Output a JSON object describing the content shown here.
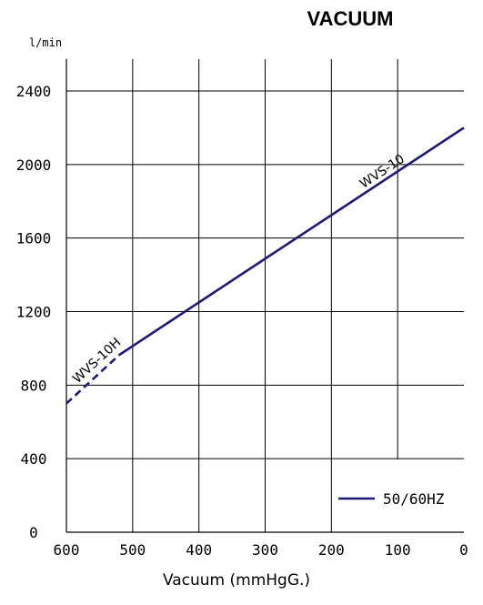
{
  "chart_data": {
    "type": "line",
    "title": "VACUUM",
    "xlabel": "Vacuum (mmHgG.)",
    "ylabel": "l/min",
    "xlim": [
      600,
      0
    ],
    "ylim": [
      0,
      2400
    ],
    "x_ticks": [
      "600",
      "500",
      "400",
      "300",
      "200",
      "100",
      "0"
    ],
    "y_ticks": [
      "0",
      "400",
      "800",
      "1200",
      "1600",
      "2000",
      "2400"
    ],
    "grid": true,
    "legend": {
      "position": "bottom-right",
      "entries": [
        "50/60HZ"
      ]
    },
    "line_color": "#1f1a78",
    "series": [
      {
        "name": "50/60HZ",
        "segments": [
          {
            "label": "WVS-10H",
            "style": "dashed",
            "x": [
              600,
              520
            ],
            "y": [
              700,
              965
            ]
          },
          {
            "label": "WVS-10",
            "style": "solid",
            "x": [
              520,
              0
            ],
            "y": [
              965,
              2200
            ]
          }
        ]
      }
    ]
  }
}
